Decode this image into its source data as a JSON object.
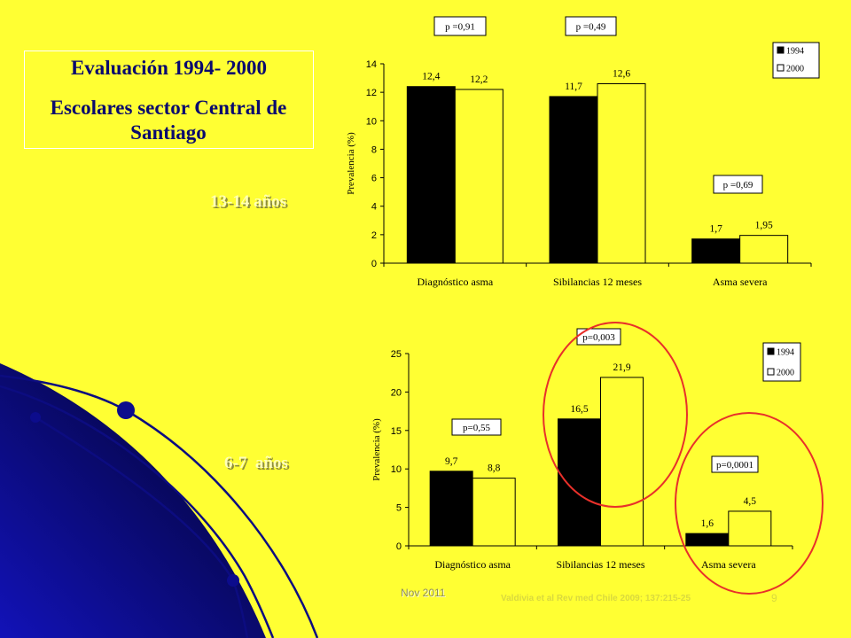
{
  "colors": {
    "background": "#FFFF33",
    "title_text": "#0A0A6E",
    "series_1994": "#000000",
    "series_2000": "#FFFF33",
    "annotation_box": "#FFFFFF",
    "highlight_ring": "#E8302A",
    "decoration": "#0C0C80"
  },
  "title_box": {
    "title": "Evaluación 1994- 2000",
    "subtitle": "Escolares sector Central de Santiago"
  },
  "age_groups": {
    "top": "13-14 años",
    "bottom": "6-7  años"
  },
  "footer": {
    "date": "Nov 2011",
    "citation": "Valdivia et al Rev med Chile 2009; 137:215-25",
    "slide_number": "9"
  },
  "chart_data": [
    {
      "type": "bar",
      "categories": [
        "Diagnóstico asma",
        "Sibilancias 12 meses",
        "Asma severa"
      ],
      "series": [
        {
          "name": "1994",
          "values": [
            12.4,
            11.7,
            1.7
          ],
          "labels": [
            "12,4",
            "11,7",
            "1,7"
          ]
        },
        {
          "name": "2000",
          "values": [
            12.2,
            12.6,
            1.95
          ],
          "labels": [
            "12,2",
            "12,6",
            "1,95"
          ]
        }
      ],
      "xlabel": "",
      "ylabel": "Prevalencia (%)",
      "ylim": [
        0,
        14
      ],
      "yticks": [
        0,
        2,
        4,
        6,
        8,
        10,
        12,
        14
      ],
      "grid": false,
      "legend": "top-right",
      "annotations": [
        "p =0,91",
        "p =0,49",
        "p =0,69"
      ],
      "highlighted": [
        false,
        false,
        false
      ]
    },
    {
      "type": "bar",
      "categories": [
        "Diagnóstico asma",
        "Sibilancias 12 meses",
        "Asma severa"
      ],
      "series": [
        {
          "name": "1994",
          "values": [
            9.7,
            16.5,
            1.6
          ],
          "labels": [
            "9,7",
            "16,5",
            "1,6"
          ]
        },
        {
          "name": "2000",
          "values": [
            8.8,
            21.9,
            4.5
          ],
          "labels": [
            "8,8",
            "21,9",
            "4,5"
          ]
        }
      ],
      "xlabel": "",
      "ylabel": "Prevalencia (%)",
      "ylim": [
        0,
        25
      ],
      "yticks": [
        0,
        5,
        10,
        15,
        20,
        25
      ],
      "grid": false,
      "legend": "top-right",
      "annotations": [
        "p=0,55",
        "p=0,003",
        "p=0,0001"
      ],
      "highlighted": [
        false,
        true,
        true
      ]
    }
  ]
}
